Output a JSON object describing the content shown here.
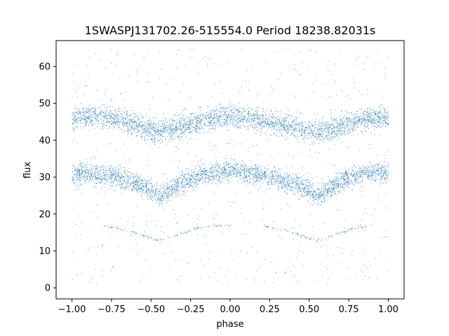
{
  "chart_data": {
    "type": "scatter",
    "title": "1SWASPJ131702.26-515554.0 Period 18238.82031s",
    "xlabel": "phase",
    "ylabel": "flux",
    "xlim": [
      -1.1,
      1.1
    ],
    "ylim": [
      -3,
      67
    ],
    "xticks": [
      -1.0,
      -0.75,
      -0.5,
      -0.25,
      0.0,
      0.25,
      0.5,
      0.75,
      1.0
    ],
    "xtick_labels": [
      "−1.00",
      "−0.75",
      "−0.50",
      "−0.25",
      "0.00",
      "0.25",
      "0.50",
      "0.75",
      "1.00"
    ],
    "yticks": [
      0,
      10,
      20,
      30,
      40,
      50,
      60
    ],
    "ytick_labels": [
      "0",
      "10",
      "20",
      "30",
      "40",
      "50",
      "60"
    ],
    "grid": false,
    "marker_color": "#1f77b4",
    "series": [
      {
        "band": "upper",
        "x": [
          -1.0,
          -0.9,
          -0.8,
          -0.7,
          -0.6,
          -0.5,
          -0.45,
          -0.4,
          -0.3,
          -0.2,
          -0.1,
          0.0,
          0.1,
          0.2,
          0.3,
          0.4,
          0.5,
          0.55,
          0.6,
          0.7,
          0.8,
          0.9,
          1.0
        ],
        "y": [
          46.0,
          46.5,
          46.5,
          45.5,
          44.0,
          42.8,
          42.5,
          42.8,
          44.0,
          45.2,
          46.0,
          46.5,
          46.2,
          45.5,
          44.5,
          43.5,
          42.8,
          42.5,
          42.8,
          44.0,
          45.5,
          46.2,
          46.0
        ],
        "spread": 2.8
      },
      {
        "band": "lower",
        "x": [
          -1.0,
          -0.9,
          -0.8,
          -0.7,
          -0.6,
          -0.5,
          -0.45,
          -0.4,
          -0.3,
          -0.2,
          -0.1,
          0.0,
          0.1,
          0.2,
          0.3,
          0.4,
          0.5,
          0.55,
          0.6,
          0.7,
          0.8,
          0.9,
          1.0
        ],
        "y": [
          31.0,
          31.0,
          30.5,
          30.0,
          28.5,
          26.5,
          25.0,
          26.0,
          29.0,
          30.5,
          31.5,
          32.0,
          31.5,
          30.5,
          29.5,
          28.5,
          26.5,
          25.0,
          26.0,
          29.0,
          30.5,
          31.5,
          31.0
        ],
        "spread": 2.6
      },
      {
        "band": "faint",
        "x": [
          -0.8,
          -0.7,
          -0.6,
          -0.5,
          -0.45,
          -0.4,
          -0.3,
          -0.2,
          -0.1,
          0.2,
          0.3,
          0.4,
          0.5,
          0.55,
          0.6,
          0.7,
          0.8,
          0.9
        ],
        "y": [
          17.0,
          16.0,
          15.0,
          13.5,
          13.0,
          13.5,
          15.0,
          16.5,
          17.0,
          17.0,
          16.0,
          15.0,
          13.5,
          13.0,
          13.5,
          15.0,
          16.5,
          17.0
        ],
        "spread": 0.4
      }
    ]
  }
}
